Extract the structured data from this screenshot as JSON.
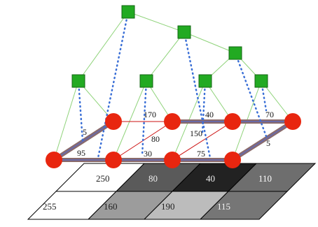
{
  "grid": {
    "rows": [
      [
        {
          "label": "250",
          "fill": "#ffffff"
        },
        {
          "label": "80",
          "fill": "#5a5a5a"
        },
        {
          "label": "40",
          "fill": "#222222"
        },
        {
          "label": "110",
          "fill": "#6e6e6e"
        }
      ],
      [
        {
          "label": "255",
          "fill": "#ffffff"
        },
        {
          "label": "160",
          "fill": "#9c9c9c"
        },
        {
          "label": "190",
          "fill": "#bcbcbc"
        },
        {
          "label": "115",
          "fill": "#767676"
        }
      ]
    ]
  },
  "edge_labels": [
    "5",
    "95",
    "170",
    "80",
    "30",
    "40",
    "150",
    "75",
    "70",
    "5"
  ],
  "colors": {
    "node_fill": "#e8260f",
    "tree_node_fill": "#22aa22",
    "tree_edge": "#8fd37a",
    "dotted_link": "#3a6fd6",
    "grid_edge_inner": "#cc1111",
    "thick_edge_outer": "#8a6a6a",
    "thick_edge_inner": "#6a6aa6"
  }
}
